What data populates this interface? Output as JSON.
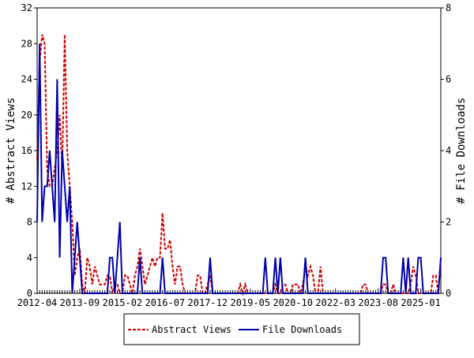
{
  "chart_data": {
    "type": "line",
    "x": [
      "2012-04",
      null,
      null,
      null,
      null,
      null,
      null,
      null,
      null,
      null,
      null,
      null,
      null,
      null,
      null,
      null,
      null,
      "2013-09",
      null,
      null,
      null,
      null,
      null,
      null,
      null,
      null,
      null,
      null,
      null,
      null,
      null,
      null,
      null,
      null,
      "2015-02",
      null,
      null,
      null,
      null,
      null,
      null,
      null,
      null,
      null,
      null,
      null,
      null,
      null,
      null,
      null,
      null,
      "2016-07",
      null,
      null,
      null,
      null,
      null,
      null,
      null,
      null,
      null,
      null,
      null,
      null,
      null,
      null,
      null,
      null,
      "2017-12",
      null,
      null,
      null,
      null,
      null,
      null,
      null,
      null,
      null,
      null,
      null,
      null,
      null,
      null,
      null,
      null,
      "2019-05",
      null,
      null,
      null,
      null,
      null,
      null,
      null,
      null,
      null,
      null,
      null,
      null,
      null,
      null,
      null,
      null,
      "2020-10",
      null,
      null,
      null,
      null,
      null,
      null,
      null,
      null,
      null,
      null,
      null,
      null,
      null,
      null,
      null,
      null,
      "2022-03",
      null,
      null,
      null,
      null,
      null,
      null,
      null,
      null,
      null,
      null,
      null,
      null,
      null,
      null,
      null,
      null,
      "2023-08",
      null,
      null,
      null,
      null,
      null,
      null,
      null,
      null,
      null,
      null,
      null,
      null,
      null,
      null,
      null,
      null,
      "2025-01",
      null,
      null,
      null,
      null,
      null,
      null,
      null,
      null
    ],
    "series": [
      {
        "name": "Abstract Views",
        "color": "#cc0000",
        "dash": true,
        "axis": "y",
        "values": [
          15,
          26,
          29,
          28,
          14,
          12,
          12,
          14,
          16,
          20,
          14,
          29,
          16,
          12,
          8,
          2,
          4,
          5,
          1,
          0,
          4,
          3,
          1,
          3,
          2,
          1,
          1,
          1,
          2,
          2,
          0,
          1,
          1,
          0,
          0,
          2,
          2,
          1,
          0,
          2,
          3,
          5,
          3,
          1,
          2,
          3,
          4,
          3,
          4,
          4,
          9,
          5,
          5,
          6,
          3,
          1,
          3,
          3,
          1,
          0,
          0,
          0,
          0,
          0,
          2,
          2,
          0,
          0,
          1,
          2,
          0,
          0,
          0,
          0,
          0,
          0,
          0,
          0,
          0,
          0,
          0,
          1,
          0,
          1,
          0,
          0,
          0,
          0,
          0,
          0,
          0,
          0,
          0,
          0,
          0,
          1,
          0,
          0,
          1,
          1,
          0,
          0,
          1,
          1,
          1,
          0,
          1,
          3,
          2,
          3,
          2,
          0,
          0,
          3,
          0,
          0,
          0,
          0,
          0,
          0,
          0,
          0,
          0,
          0,
          0,
          0,
          0,
          0,
          0,
          0,
          1,
          1,
          0,
          0,
          0,
          0,
          0,
          0,
          1,
          1,
          0,
          0,
          1,
          0,
          0,
          0,
          0,
          0,
          0,
          1,
          3,
          2,
          0,
          0,
          0,
          0,
          0,
          0,
          2,
          2,
          0,
          4
        ]
      },
      {
        "name": "File Downloads",
        "color": "#0000aa",
        "dash": false,
        "axis": "y2",
        "values": [
          2,
          7,
          2,
          3,
          3,
          4,
          3,
          2,
          6,
          1,
          4,
          3,
          2,
          3,
          0,
          1,
          2,
          1,
          0,
          0,
          0,
          0,
          0,
          0,
          0,
          0,
          0,
          0,
          0,
          1,
          1,
          0,
          1,
          2,
          0,
          0,
          0,
          0,
          0,
          0,
          0,
          1,
          0,
          0,
          0,
          0,
          0,
          0,
          0,
          0,
          1,
          0,
          0,
          0,
          0,
          0,
          0,
          0,
          0,
          0,
          0,
          0,
          0,
          0,
          0,
          0,
          0,
          0,
          0,
          1,
          0,
          0,
          0,
          0,
          0,
          0,
          0,
          0,
          0,
          0,
          0,
          0,
          0,
          0,
          0,
          0,
          0,
          0,
          0,
          0,
          0,
          1,
          0,
          0,
          0,
          1,
          0,
          1,
          0,
          0,
          0,
          0,
          0,
          0,
          0,
          0,
          0,
          1,
          0,
          0,
          0,
          0,
          0,
          0,
          0,
          0,
          0,
          0,
          0,
          0,
          0,
          0,
          0,
          0,
          0,
          0,
          0,
          0,
          0,
          0,
          0,
          0,
          0,
          0,
          0,
          0,
          0,
          0,
          1,
          1,
          0,
          0,
          0,
          0,
          0,
          0,
          1,
          0,
          1,
          0,
          0,
          0,
          1,
          1,
          0,
          0,
          0,
          0,
          0,
          0,
          0,
          1
        ]
      }
    ],
    "ylabel": "# Abstract Views",
    "y2label": "# File Downloads",
    "ylim": [
      0,
      32
    ],
    "yticks": [
      0,
      4,
      8,
      12,
      16,
      20,
      24,
      28,
      32
    ],
    "y2lim": [
      0,
      8
    ],
    "y2ticks": [
      0,
      2,
      4,
      6,
      8
    ]
  }
}
